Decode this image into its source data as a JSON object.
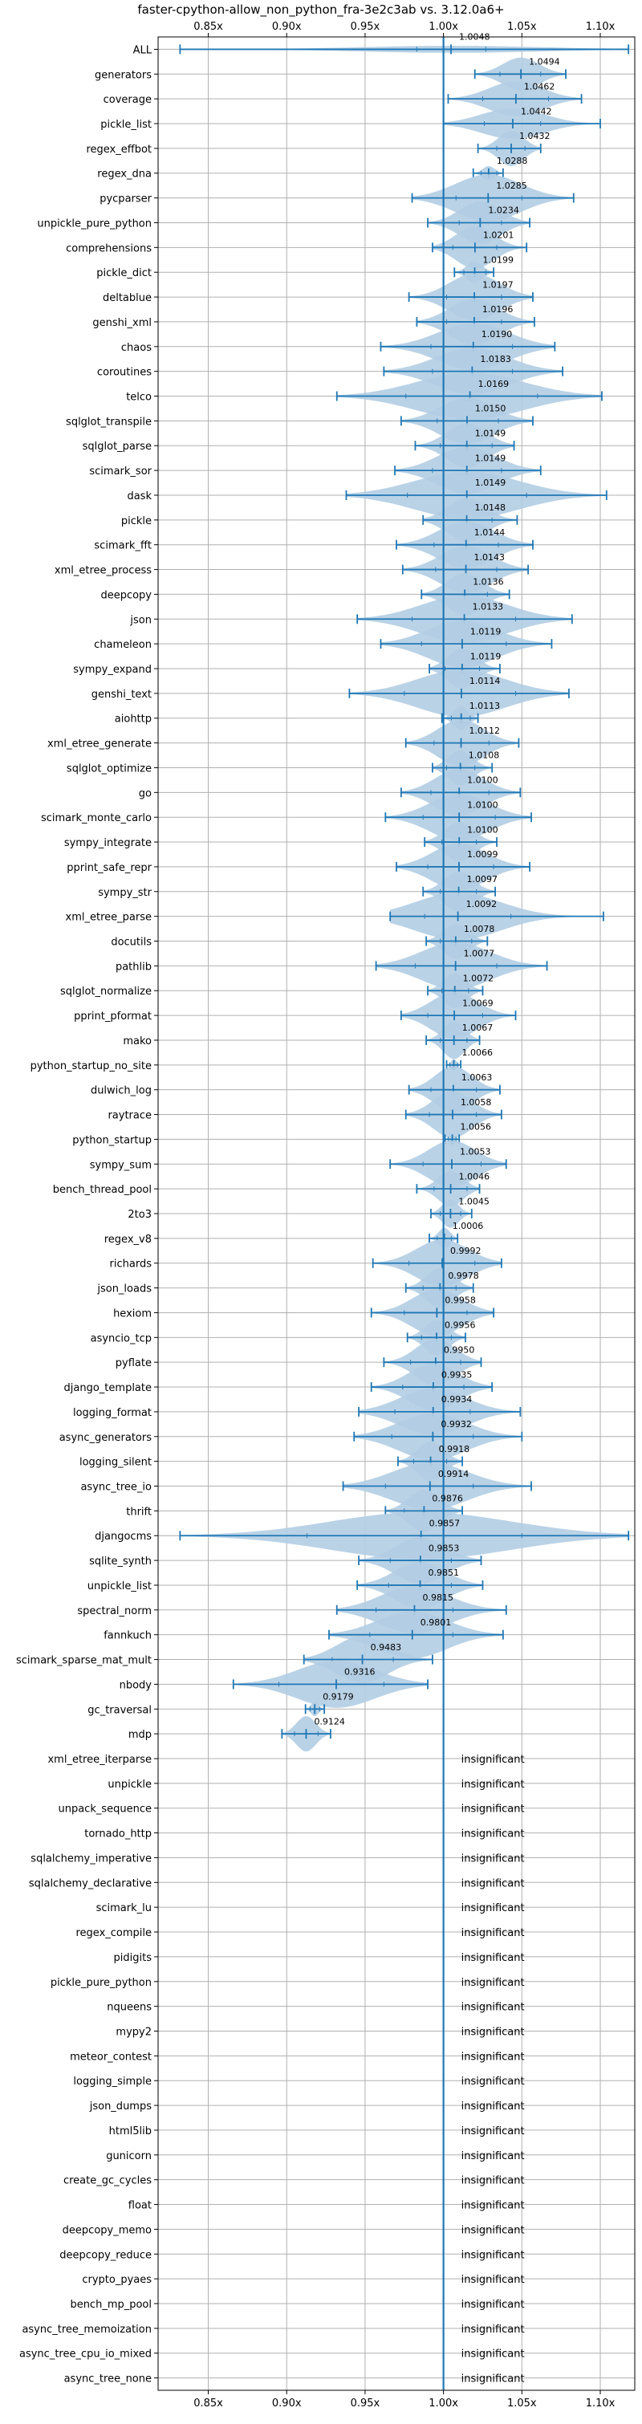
{
  "chart_data": {
    "type": "violin",
    "title": "faster-cpython-allow_non_python_fra-3e2c3ab vs. 3.12.0a6+",
    "tick_values": [
      0.85,
      0.9,
      0.95,
      1.0,
      1.05,
      1.1
    ],
    "tick_labels": [
      "0.85x",
      "0.90x",
      "0.95x",
      "1.00x",
      "1.05x",
      "1.10x"
    ],
    "xlim": [
      0.818,
      1.122
    ],
    "reference_line": 1.0,
    "grid": true,
    "colors": {
      "violin": "#b3cde3",
      "whisker": "#1f77b4",
      "reference": "#1f77b4",
      "grid": "#b0b0b0"
    },
    "insignificant_label": "insignificant",
    "benchmarks": [
      {
        "name": "ALL",
        "value": 1.0048,
        "label": "1.0048",
        "min": 0.832,
        "max": 1.118,
        "q1": 0.983,
        "q3": 1.027,
        "width": 0.006
      },
      {
        "name": "generators",
        "value": 1.0494,
        "label": "1.0494",
        "min": 1.02,
        "max": 1.078,
        "q1": 1.036,
        "q3": 1.062,
        "width": 0.028
      },
      {
        "name": "coverage",
        "value": 1.0462,
        "label": "1.0462",
        "min": 1.003,
        "max": 1.088,
        "q1": 1.025,
        "q3": 1.067,
        "width": 0.03
      },
      {
        "name": "pickle_list",
        "value": 1.0442,
        "label": "1.0442",
        "min": 1.0,
        "max": 1.1,
        "q1": 1.026,
        "q3": 1.062,
        "width": 0.026
      },
      {
        "name": "regex_effbot",
        "value": 1.0432,
        "label": "1.0432",
        "min": 1.022,
        "max": 1.062,
        "q1": 1.034,
        "q3": 1.052,
        "width": 0.03
      },
      {
        "name": "regex_dna",
        "value": 1.0288,
        "label": "1.0288",
        "min": 1.019,
        "max": 1.038,
        "q1": 1.024,
        "q3": 1.034,
        "width": 0.012
      },
      {
        "name": "pycparser",
        "value": 1.0285,
        "label": "1.0285",
        "min": 0.98,
        "max": 1.083,
        "q1": 1.008,
        "q3": 1.05,
        "width": 0.04
      },
      {
        "name": "unpickle_pure_python",
        "value": 1.0234,
        "label": "1.0234",
        "min": 0.99,
        "max": 1.055,
        "q1": 1.01,
        "q3": 1.037,
        "width": 0.036
      },
      {
        "name": "comprehensions",
        "value": 1.0201,
        "label": "1.0201",
        "min": 0.993,
        "max": 1.053,
        "q1": 1.006,
        "q3": 1.034,
        "width": 0.036
      },
      {
        "name": "pickle_dict",
        "value": 1.0199,
        "label": "1.0199",
        "min": 1.007,
        "max": 1.032,
        "q1": 1.013,
        "q3": 1.027,
        "width": 0.018
      },
      {
        "name": "deltablue",
        "value": 1.0197,
        "label": "1.0197",
        "min": 0.978,
        "max": 1.057,
        "q1": 1.002,
        "q3": 1.037,
        "width": 0.04
      },
      {
        "name": "genshi_xml",
        "value": 1.0196,
        "label": "1.0196",
        "min": 0.983,
        "max": 1.058,
        "q1": 1.002,
        "q3": 1.037,
        "width": 0.04
      },
      {
        "name": "chaos",
        "value": 1.019,
        "label": "1.0190",
        "min": 0.96,
        "max": 1.071,
        "q1": 0.992,
        "q3": 1.044,
        "width": 0.04
      },
      {
        "name": "coroutines",
        "value": 1.0183,
        "label": "1.0183",
        "min": 0.962,
        "max": 1.076,
        "q1": 0.993,
        "q3": 1.044,
        "width": 0.04
      },
      {
        "name": "telco",
        "value": 1.0169,
        "label": "1.0169",
        "min": 0.932,
        "max": 1.101,
        "q1": 0.976,
        "q3": 1.06,
        "width": 0.04
      },
      {
        "name": "sqlglot_transpile",
        "value": 1.015,
        "label": "1.0150",
        "min": 0.973,
        "max": 1.057,
        "q1": 0.996,
        "q3": 1.035,
        "width": 0.04
      },
      {
        "name": "sqlglot_parse",
        "value": 1.0149,
        "label": "1.0149",
        "min": 0.982,
        "max": 1.045,
        "q1": 0.998,
        "q3": 1.031,
        "width": 0.038
      },
      {
        "name": "scimark_sor",
        "value": 1.0149,
        "label": "1.0149",
        "min": 0.969,
        "max": 1.062,
        "q1": 0.993,
        "q3": 1.037,
        "width": 0.04
      },
      {
        "name": "dask",
        "value": 1.0149,
        "label": "1.0149",
        "min": 0.938,
        "max": 1.104,
        "q1": 0.977,
        "q3": 1.053,
        "width": 0.04
      },
      {
        "name": "pickle",
        "value": 1.0148,
        "label": "1.0148",
        "min": 0.987,
        "max": 1.047,
        "q1": 1.0,
        "q3": 1.031,
        "width": 0.038
      },
      {
        "name": "scimark_fft",
        "value": 1.0144,
        "label": "1.0144",
        "min": 0.97,
        "max": 1.057,
        "q1": 0.994,
        "q3": 1.035,
        "width": 0.04
      },
      {
        "name": "xml_etree_process",
        "value": 1.0143,
        "label": "1.0143",
        "min": 0.974,
        "max": 1.054,
        "q1": 0.995,
        "q3": 1.034,
        "width": 0.04
      },
      {
        "name": "deepcopy",
        "value": 1.0136,
        "label": "1.0136",
        "min": 0.986,
        "max": 1.042,
        "q1": 1.0,
        "q3": 1.028,
        "width": 0.036
      },
      {
        "name": "json",
        "value": 1.0133,
        "label": "1.0133",
        "min": 0.945,
        "max": 1.082,
        "q1": 0.98,
        "q3": 1.046,
        "width": 0.04
      },
      {
        "name": "chameleon",
        "value": 1.0119,
        "label": "1.0119",
        "min": 0.96,
        "max": 1.069,
        "q1": 0.986,
        "q3": 1.04,
        "width": 0.04
      },
      {
        "name": "sympy_expand",
        "value": 1.0119,
        "label": "1.0119",
        "min": 0.991,
        "max": 1.036,
        "q1": 1.001,
        "q3": 1.023,
        "width": 0.034
      },
      {
        "name": "genshi_text",
        "value": 1.0114,
        "label": "1.0114",
        "min": 0.94,
        "max": 1.08,
        "q1": 0.975,
        "q3": 1.046,
        "width": 0.04
      },
      {
        "name": "aiohttp",
        "value": 1.0113,
        "label": "1.0113",
        "min": 0.999,
        "max": 1.022,
        "q1": 1.005,
        "q3": 1.017,
        "width": 0.02
      },
      {
        "name": "xml_etree_generate",
        "value": 1.0112,
        "label": "1.0112",
        "min": 0.976,
        "max": 1.048,
        "q1": 0.994,
        "q3": 1.029,
        "width": 0.04
      },
      {
        "name": "sqlglot_optimize",
        "value": 1.0108,
        "label": "1.0108",
        "min": 0.993,
        "max": 1.031,
        "q1": 1.002,
        "q3": 1.02,
        "width": 0.03
      },
      {
        "name": "go",
        "value": 1.01,
        "label": "1.0100",
        "min": 0.973,
        "max": 1.049,
        "q1": 0.992,
        "q3": 1.029,
        "width": 0.04
      },
      {
        "name": "scimark_monte_carlo",
        "value": 1.01,
        "label": "1.0100",
        "min": 0.963,
        "max": 1.056,
        "q1": 0.987,
        "q3": 1.033,
        "width": 0.04
      },
      {
        "name": "sympy_integrate",
        "value": 1.01,
        "label": "1.0100",
        "min": 0.988,
        "max": 1.034,
        "q1": 0.999,
        "q3": 1.021,
        "width": 0.034
      },
      {
        "name": "pprint_safe_repr",
        "value": 1.0099,
        "label": "1.0099",
        "min": 0.97,
        "max": 1.055,
        "q1": 0.99,
        "q3": 1.032,
        "width": 0.04
      },
      {
        "name": "sympy_str",
        "value": 1.0097,
        "label": "1.0097",
        "min": 0.987,
        "max": 1.033,
        "q1": 0.998,
        "q3": 1.021,
        "width": 0.034
      },
      {
        "name": "xml_etree_parse",
        "value": 1.0092,
        "label": "1.0092",
        "min": 0.966,
        "max": 1.102,
        "q1": 0.988,
        "q3": 1.043,
        "width": 0.04
      },
      {
        "name": "docutils",
        "value": 1.0078,
        "label": "1.0078",
        "min": 0.989,
        "max": 1.028,
        "q1": 0.998,
        "q3": 1.018,
        "width": 0.03
      },
      {
        "name": "pathlib",
        "value": 1.0077,
        "label": "1.0077",
        "min": 0.957,
        "max": 1.066,
        "q1": 0.982,
        "q3": 1.034,
        "width": 0.04
      },
      {
        "name": "sqlglot_normalize",
        "value": 1.0072,
        "label": "1.0072",
        "min": 0.99,
        "max": 1.025,
        "q1": 0.999,
        "q3": 1.016,
        "width": 0.03
      },
      {
        "name": "pprint_pformat",
        "value": 1.0069,
        "label": "1.0069",
        "min": 0.973,
        "max": 1.046,
        "q1": 0.99,
        "q3": 1.025,
        "width": 0.04
      },
      {
        "name": "mako",
        "value": 1.0067,
        "label": "1.0067",
        "min": 0.989,
        "max": 1.023,
        "q1": 0.998,
        "q3": 1.015,
        "width": 0.032
      },
      {
        "name": "python_startup_no_site",
        "value": 1.0066,
        "label": "1.0066",
        "min": 1.002,
        "max": 1.011,
        "q1": 1.004,
        "q3": 1.009,
        "width": 0.01
      },
      {
        "name": "dulwich_log",
        "value": 1.0063,
        "label": "1.0063",
        "min": 0.978,
        "max": 1.036,
        "q1": 0.992,
        "q3": 1.021,
        "width": 0.04
      },
      {
        "name": "raytrace",
        "value": 1.0058,
        "label": "1.0058",
        "min": 0.976,
        "max": 1.037,
        "q1": 0.991,
        "q3": 1.021,
        "width": 0.04
      },
      {
        "name": "python_startup",
        "value": 1.0056,
        "label": "1.0056",
        "min": 1.001,
        "max": 1.01,
        "q1": 1.003,
        "q3": 1.008,
        "width": 0.01
      },
      {
        "name": "sympy_sum",
        "value": 1.0053,
        "label": "1.0053",
        "min": 0.966,
        "max": 1.04,
        "q1": 0.987,
        "q3": 1.024,
        "width": 0.04
      },
      {
        "name": "bench_thread_pool",
        "value": 1.0046,
        "label": "1.0046",
        "min": 0.983,
        "max": 1.023,
        "q1": 0.994,
        "q3": 1.015,
        "width": 0.03
      },
      {
        "name": "2to3",
        "value": 1.0045,
        "label": "1.0045",
        "min": 0.992,
        "max": 1.018,
        "q1": 0.998,
        "q3": 1.011,
        "width": 0.024
      },
      {
        "name": "regex_v8",
        "value": 1.0006,
        "label": "1.0006",
        "min": 0.991,
        "max": 1.009,
        "q1": 0.996,
        "q3": 1.005,
        "width": 0.018
      },
      {
        "name": "richards",
        "value": 0.9992,
        "label": "0.9992",
        "min": 0.955,
        "max": 1.037,
        "q1": 0.978,
        "q3": 1.02,
        "width": 0.04
      },
      {
        "name": "json_loads",
        "value": 0.9978,
        "label": "0.9978",
        "min": 0.976,
        "max": 1.019,
        "q1": 0.987,
        "q3": 1.008,
        "width": 0.034
      },
      {
        "name": "hexiom",
        "value": 0.9958,
        "label": "0.9958",
        "min": 0.954,
        "max": 1.032,
        "q1": 0.975,
        "q3": 1.015,
        "width": 0.04
      },
      {
        "name": "asyncio_tcp",
        "value": 0.9956,
        "label": "0.9956",
        "min": 0.977,
        "max": 1.014,
        "q1": 0.986,
        "q3": 1.005,
        "width": 0.03
      },
      {
        "name": "pyflate",
        "value": 0.995,
        "label": "0.9950",
        "min": 0.962,
        "max": 1.024,
        "q1": 0.979,
        "q3": 1.011,
        "width": 0.04
      },
      {
        "name": "django_template",
        "value": 0.9935,
        "label": "0.9935",
        "min": 0.954,
        "max": 1.031,
        "q1": 0.974,
        "q3": 1.013,
        "width": 0.04
      },
      {
        "name": "logging_format",
        "value": 0.9934,
        "label": "0.9934",
        "min": 0.946,
        "max": 1.049,
        "q1": 0.969,
        "q3": 1.017,
        "width": 0.04
      },
      {
        "name": "async_generators",
        "value": 0.9932,
        "label": "0.9932",
        "min": 0.943,
        "max": 1.05,
        "q1": 0.967,
        "q3": 1.019,
        "width": 0.04
      },
      {
        "name": "logging_silent",
        "value": 0.9918,
        "label": "0.9918",
        "min": 0.971,
        "max": 1.012,
        "q1": 0.981,
        "q3": 1.002,
        "width": 0.034
      },
      {
        "name": "async_tree_io",
        "value": 0.9914,
        "label": "0.9914",
        "min": 0.936,
        "max": 1.056,
        "q1": 0.963,
        "q3": 1.019,
        "width": 0.04
      },
      {
        "name": "thrift",
        "value": 0.9876,
        "label": "0.9876",
        "min": 0.963,
        "max": 1.012,
        "q1": 0.975,
        "q3": 1.0,
        "width": 0.036
      },
      {
        "name": "djangocms",
        "value": 0.9857,
        "label": "0.9857",
        "min": 0.832,
        "max": 1.118,
        "q1": 0.913,
        "q3": 1.05,
        "width": 0.04
      },
      {
        "name": "sqlite_synth",
        "value": 0.9853,
        "label": "0.9853",
        "min": 0.946,
        "max": 1.024,
        "q1": 0.966,
        "q3": 1.005,
        "width": 0.04
      },
      {
        "name": "unpickle_list",
        "value": 0.9851,
        "label": "0.9851",
        "min": 0.945,
        "max": 1.025,
        "q1": 0.965,
        "q3": 1.005,
        "width": 0.04
      },
      {
        "name": "spectral_norm",
        "value": 0.9815,
        "label": "0.9815",
        "min": 0.932,
        "max": 1.04,
        "q1": 0.957,
        "q3": 1.006,
        "width": 0.04
      },
      {
        "name": "fannkuch",
        "value": 0.9801,
        "label": "0.9801",
        "min": 0.927,
        "max": 1.038,
        "q1": 0.953,
        "q3": 1.006,
        "width": 0.04
      },
      {
        "name": "scimark_sparse_mat_mult",
        "value": 0.9483,
        "label": "0.9483",
        "min": 0.911,
        "max": 0.993,
        "q1": 0.929,
        "q3": 0.968,
        "width": 0.04
      },
      {
        "name": "nbody",
        "value": 0.9316,
        "label": "0.9316",
        "min": 0.866,
        "max": 0.99,
        "q1": 0.895,
        "q3": 0.962,
        "width": 0.04
      },
      {
        "name": "gc_traversal",
        "value": 0.9179,
        "label": "0.9179",
        "min": 0.912,
        "max": 0.924,
        "q1": 0.915,
        "q3": 0.921,
        "width": 0.012
      },
      {
        "name": "mdp",
        "value": 0.9124,
        "label": "0.9124",
        "min": 0.897,
        "max": 0.928,
        "q1": 0.905,
        "q3": 0.92,
        "width": 0.03
      },
      {
        "name": "xml_etree_iterparse",
        "insignificant": true
      },
      {
        "name": "unpickle",
        "insignificant": true
      },
      {
        "name": "unpack_sequence",
        "insignificant": true
      },
      {
        "name": "tornado_http",
        "insignificant": true
      },
      {
        "name": "sqlalchemy_imperative",
        "insignificant": true
      },
      {
        "name": "sqlalchemy_declarative",
        "insignificant": true
      },
      {
        "name": "scimark_lu",
        "insignificant": true
      },
      {
        "name": "regex_compile",
        "insignificant": true
      },
      {
        "name": "pidigits",
        "insignificant": true
      },
      {
        "name": "pickle_pure_python",
        "insignificant": true
      },
      {
        "name": "nqueens",
        "insignificant": true
      },
      {
        "name": "mypy2",
        "insignificant": true
      },
      {
        "name": "meteor_contest",
        "insignificant": true
      },
      {
        "name": "logging_simple",
        "insignificant": true
      },
      {
        "name": "json_dumps",
        "insignificant": true
      },
      {
        "name": "html5lib",
        "insignificant": true
      },
      {
        "name": "gunicorn",
        "insignificant": true
      },
      {
        "name": "create_gc_cycles",
        "insignificant": true
      },
      {
        "name": "float",
        "insignificant": true
      },
      {
        "name": "deepcopy_memo",
        "insignificant": true
      },
      {
        "name": "deepcopy_reduce",
        "insignificant": true
      },
      {
        "name": "crypto_pyaes",
        "insignificant": true
      },
      {
        "name": "bench_mp_pool",
        "insignificant": true
      },
      {
        "name": "async_tree_memoization",
        "insignificant": true
      },
      {
        "name": "async_tree_cpu_io_mixed",
        "insignificant": true
      },
      {
        "name": "async_tree_none",
        "insignificant": true
      }
    ]
  }
}
